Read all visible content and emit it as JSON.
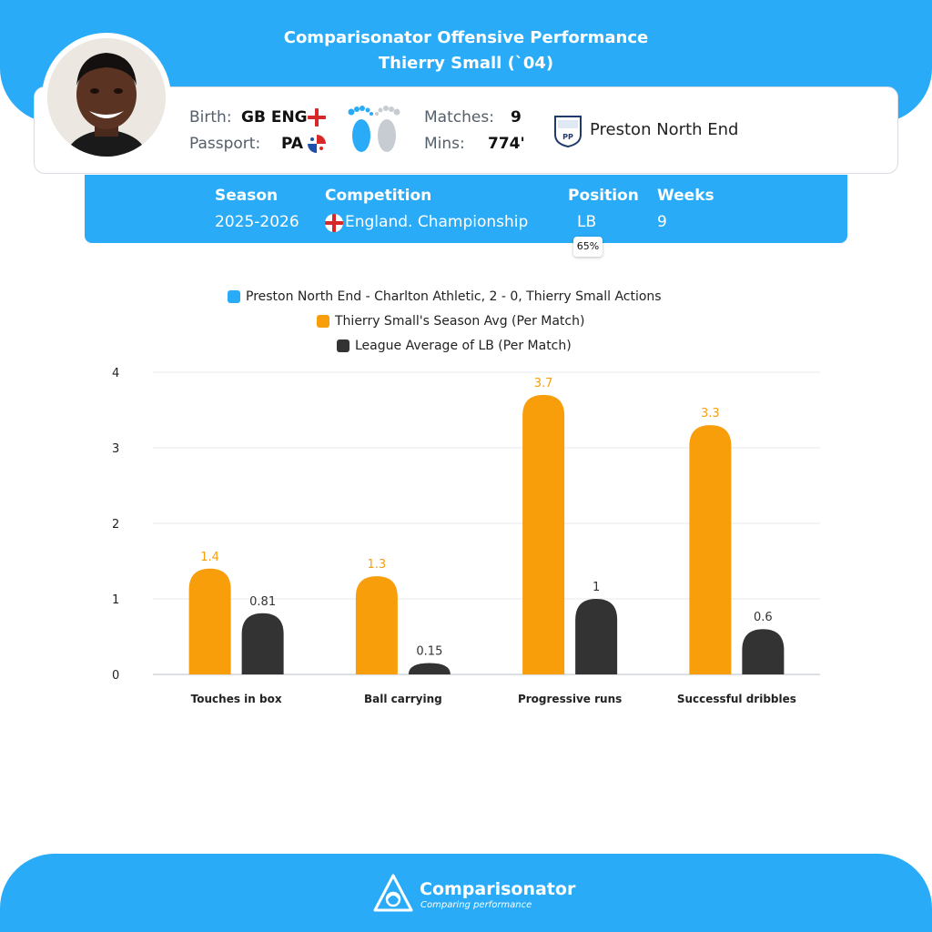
{
  "header": {
    "title_line1": "Comparisonator Offensive Performance",
    "title_line2": "Thierry Small (`04)"
  },
  "player": {
    "birth_label": "Birth:",
    "birth_value": "GB ENG",
    "passport_label": "Passport:",
    "passport_value": "PA",
    "matches_label": "Matches:",
    "matches_value": "9",
    "mins_label": "Mins:",
    "mins_value": "774'",
    "club": "Preston North End",
    "crest_text": "PP"
  },
  "season": {
    "season_label": "Season",
    "season_value": "2025-2026",
    "competition_label": "Competition",
    "competition_value": "England. Championship",
    "position_label": "Position",
    "position_value": "LB",
    "position_pct": "65%",
    "weeks_label": "Weeks",
    "weeks_value": "9"
  },
  "colors": {
    "accent": "#29abf7",
    "season_avg": "#f99e0b",
    "league_avg": "#333333"
  },
  "chart_data": {
    "type": "bar",
    "categories": [
      "Touches in box",
      "Ball carrying",
      "Progressive runs",
      "Successful dribbles"
    ],
    "series": [
      {
        "name": "Preston North End - Charlton Athletic, 2 - 0, Thierry Small Actions",
        "color": "#29abf7",
        "values": [
          0,
          0,
          0,
          0
        ]
      },
      {
        "name": "Thierry Small's Season Avg (Per Match)",
        "color": "#f99e0b",
        "values": [
          1.4,
          1.3,
          3.7,
          3.3
        ],
        "labels": [
          "1.4",
          "1.3",
          "3.7",
          "3.3"
        ]
      },
      {
        "name": "League Average of LB (Per Match)",
        "color": "#333333",
        "values": [
          0.81,
          0.15,
          1,
          0.6
        ],
        "labels": [
          "0.81",
          "0.15",
          "1",
          "0.6"
        ]
      }
    ],
    "yticks": [
      "0",
      "1",
      "2",
      "3",
      "4"
    ],
    "ylim": [
      0,
      4
    ],
    "grid": true,
    "legend_position": "top-center"
  },
  "footer": {
    "brand": "Comparisonator",
    "tagline": "Comparing performance"
  }
}
